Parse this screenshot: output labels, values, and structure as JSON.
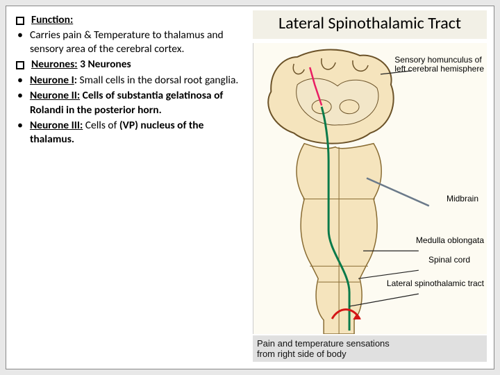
{
  "title": "Lateral Spinothalamic Tract",
  "bullets": [
    {
      "marker": "sq",
      "html": "<b><span class='u'>Function:</span></b>"
    },
    {
      "marker": "dot",
      "html": "Carries pain & Temperature to thalamus and sensory area of the cerebral cortex."
    },
    {
      "marker": "sq",
      "html": "<b><span class='u'>Neurones:</span> 3 Neurones</b>"
    },
    {
      "marker": "dot",
      "html": " <b><span class='u'>Neurone I</span>:</b>  Small cells in the dorsal root ganglia."
    },
    {
      "marker": "dot",
      "html": "<b><span class='u'>Neurone II:</span> Cells of substantia gelatinosa of Rolandi in the posterior horn.</b>"
    },
    {
      "marker": "dot",
      "html": "<b><span class='u'>Neurone III:</span></b> Cells of <b>(VP) nucleus of the thalamus.</b>"
    }
  ],
  "diagram": {
    "bg": "#fdfbf2",
    "cortex_fill": "#f5e4bd",
    "cortex_stroke": "#6b5228",
    "outline_stroke": "#886b32",
    "inner_fill": "#f2e6c8",
    "line_pink": "#e91e63",
    "line_green": "#0a7a4a",
    "line_bluegray": "#6b7a8a",
    "line_black": "#222",
    "red_arc": "#d41616",
    "labels": {
      "homunculus": "Sensory homunculus of\nleft cerebral hemisphere",
      "midbrain": "Midbrain",
      "medulla": "Medulla oblongata",
      "spinal": "Spinal cord",
      "tract": "Lateral spinothalamic tract"
    },
    "caption": "Pain and temperature sensations\nfrom right side of body"
  }
}
